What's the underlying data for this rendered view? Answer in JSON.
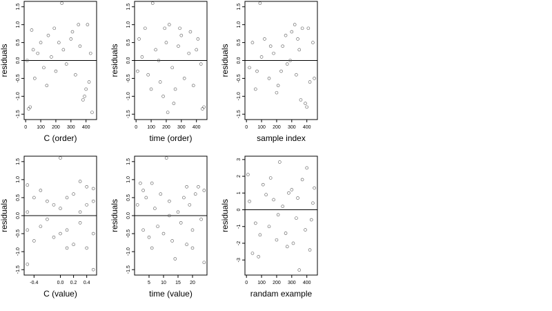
{
  "chart_data": [
    {
      "type": "scatter",
      "xlabel": "C (order)",
      "ylabel": "residuals",
      "xlim": [
        -10,
        470
      ],
      "ylim": [
        -1.65,
        1.65
      ],
      "xticks": [
        0,
        100,
        200,
        300,
        400
      ],
      "yticks": [
        1.5,
        1.0,
        0.5,
        0.0,
        -0.5,
        -1.0,
        -1.5
      ],
      "ytick_labels": [
        "1.5",
        "1.0",
        "0.5",
        "0.0",
        "-0.5",
        "-1.0",
        "-1.5"
      ],
      "hline": 0,
      "points": [
        [
          240,
          1.6
        ],
        [
          40,
          0.85
        ],
        [
          350,
          1.0
        ],
        [
          410,
          1.0
        ],
        [
          20,
          -1.35
        ],
        [
          30,
          -1.3
        ],
        [
          440,
          -1.45
        ],
        [
          380,
          -1.1
        ],
        [
          390,
          -1.0
        ],
        [
          100,
          0.5
        ],
        [
          150,
          0.7
        ],
        [
          300,
          0.6
        ],
        [
          80,
          0.2
        ],
        [
          120,
          -0.2
        ],
        [
          200,
          -0.3
        ],
        [
          250,
          0.3
        ],
        [
          330,
          -0.4
        ],
        [
          360,
          0.4
        ],
        [
          420,
          -0.6
        ],
        [
          60,
          -0.5
        ],
        [
          170,
          0.1
        ],
        [
          270,
          -0.1
        ],
        [
          430,
          0.2
        ],
        [
          10,
          0.0
        ],
        [
          220,
          0.5
        ],
        [
          310,
          0.8
        ],
        [
          140,
          -0.7
        ],
        [
          190,
          0.9
        ],
        [
          400,
          -0.8
        ],
        [
          50,
          0.3
        ]
      ]
    },
    {
      "type": "scatter",
      "xlabel": "time (order)",
      "ylabel": "residuals",
      "xlim": [
        -10,
        470
      ],
      "ylim": [
        -1.65,
        1.65
      ],
      "xticks": [
        0,
        100,
        200,
        300,
        400
      ],
      "yticks": [
        1.5,
        1.0,
        0.5,
        0.0,
        -0.5,
        -1.0,
        -1.5
      ],
      "ytick_labels": [
        "1.5",
        "1.0",
        "0.5",
        "0.0",
        "-0.5",
        "-1.0",
        "-1.5"
      ],
      "hline": 0,
      "points": [
        [
          110,
          1.6
        ],
        [
          60,
          0.9
        ],
        [
          220,
          1.0
        ],
        [
          290,
          0.9
        ],
        [
          450,
          -1.3
        ],
        [
          440,
          -1.35
        ],
        [
          210,
          -1.45
        ],
        [
          180,
          -1.0
        ],
        [
          250,
          -1.2
        ],
        [
          20,
          0.6
        ],
        [
          80,
          -0.4
        ],
        [
          130,
          0.3
        ],
        [
          160,
          -0.6
        ],
        [
          200,
          0.5
        ],
        [
          240,
          -0.2
        ],
        [
          280,
          0.4
        ],
        [
          320,
          -0.5
        ],
        [
          350,
          0.2
        ],
        [
          380,
          -0.7
        ],
        [
          410,
          0.6
        ],
        [
          430,
          -0.1
        ],
        [
          40,
          0.1
        ],
        [
          300,
          0.7
        ],
        [
          100,
          -0.8
        ],
        [
          360,
          0.8
        ],
        [
          150,
          0.0
        ],
        [
          260,
          -0.8
        ],
        [
          400,
          0.3
        ],
        [
          10,
          -0.3
        ],
        [
          190,
          0.9
        ]
      ]
    },
    {
      "type": "scatter",
      "xlabel": "sample index",
      "ylabel": "residuals",
      "xlim": [
        -10,
        470
      ],
      "ylim": [
        -1.65,
        1.65
      ],
      "xticks": [
        0,
        100,
        200,
        300,
        400
      ],
      "yticks": [
        1.5,
        1.0,
        0.5,
        0.0,
        -0.5,
        -1.0,
        -1.5
      ],
      "ytick_labels": [
        "1.5",
        "1.0",
        "0.5",
        "0.0",
        "-0.5",
        "-1.0",
        "-1.5"
      ],
      "hline": 0,
      "points": [
        [
          90,
          1.6
        ],
        [
          320,
          1.0
        ],
        [
          370,
          0.9
        ],
        [
          390,
          -1.2
        ],
        [
          400,
          -1.3
        ],
        [
          360,
          -1.1
        ],
        [
          40,
          0.5
        ],
        [
          70,
          -0.3
        ],
        [
          120,
          0.6
        ],
        [
          150,
          -0.5
        ],
        [
          180,
          0.2
        ],
        [
          210,
          -0.7
        ],
        [
          240,
          0.4
        ],
        [
          270,
          -0.1
        ],
        [
          300,
          0.8
        ],
        [
          330,
          -0.4
        ],
        [
          350,
          0.3
        ],
        [
          420,
          -0.6
        ],
        [
          440,
          0.5
        ],
        [
          20,
          -0.2
        ],
        [
          100,
          0.1
        ],
        [
          200,
          -0.9
        ],
        [
          260,
          0.7
        ],
        [
          410,
          0.9
        ],
        [
          60,
          -0.8
        ],
        [
          160,
          0.4
        ],
        [
          230,
          -0.3
        ],
        [
          290,
          0.0
        ],
        [
          340,
          0.6
        ],
        [
          450,
          -0.5
        ]
      ]
    },
    {
      "type": "scatter",
      "xlabel": "C (value)",
      "ylabel": "residuals",
      "xlim": [
        -0.55,
        0.55
      ],
      "ylim": [
        -1.65,
        1.65
      ],
      "xticks": [
        -0.4,
        0.0,
        0.2,
        0.4
      ],
      "xtick_labels": [
        "-0.4",
        "0.0",
        "0.2",
        "0.4"
      ],
      "yticks": [
        1.5,
        1.0,
        0.5,
        0.0,
        -0.5,
        -1.0,
        -1.5
      ],
      "ytick_labels": [
        "1.5",
        "1.0",
        "0.5",
        "0.0",
        "-0.5",
        "-1.0",
        "-1.5"
      ],
      "hline": 0,
      "points": [
        [
          0.0,
          1.6
        ],
        [
          -0.5,
          0.85
        ],
        [
          -0.5,
          -1.35
        ],
        [
          0.5,
          -1.5
        ],
        [
          0.5,
          0.75
        ],
        [
          0.3,
          0.95
        ],
        [
          -0.4,
          0.5
        ],
        [
          -0.3,
          -0.3
        ],
        [
          -0.2,
          0.4
        ],
        [
          -0.1,
          -0.6
        ],
        [
          0.0,
          0.2
        ],
        [
          0.1,
          -0.4
        ],
        [
          0.2,
          0.6
        ],
        [
          0.3,
          -0.2
        ],
        [
          0.4,
          0.3
        ],
        [
          0.5,
          -0.5
        ],
        [
          -0.5,
          0.1
        ],
        [
          -0.4,
          -0.7
        ],
        [
          0.1,
          0.5
        ],
        [
          0.2,
          -0.8
        ],
        [
          0.4,
          -0.9
        ],
        [
          0.5,
          0.4
        ],
        [
          -0.3,
          0.7
        ],
        [
          0.0,
          -0.5
        ],
        [
          -0.2,
          -0.1
        ],
        [
          0.3,
          0.1
        ],
        [
          0.4,
          0.8
        ],
        [
          -0.1,
          0.3
        ],
        [
          0.1,
          -0.9
        ],
        [
          -0.5,
          -0.4
        ]
      ]
    },
    {
      "type": "scatter",
      "xlabel": "time (value)",
      "ylabel": "residuals",
      "xlim": [
        0,
        25
      ],
      "ylim": [
        -1.65,
        1.65
      ],
      "xticks": [
        5,
        10,
        15,
        20
      ],
      "yticks": [
        1.5,
        1.0,
        0.5,
        0.0,
        -0.5,
        -1.0,
        -1.5
      ],
      "ytick_labels": [
        "1.5",
        "1.0",
        "0.5",
        "0.0",
        "-0.5",
        "-1.0",
        "-1.5"
      ],
      "hline": 0,
      "points": [
        [
          11,
          1.6
        ],
        [
          2,
          0.9
        ],
        [
          6,
          0.9
        ],
        [
          22,
          0.8
        ],
        [
          24,
          -1.3
        ],
        [
          14,
          -1.2
        ],
        [
          1,
          0.3
        ],
        [
          3,
          -0.4
        ],
        [
          4,
          0.5
        ],
        [
          5,
          -0.6
        ],
        [
          7,
          0.2
        ],
        [
          8,
          -0.3
        ],
        [
          9,
          0.6
        ],
        [
          10,
          -0.5
        ],
        [
          12,
          0.4
        ],
        [
          13,
          -0.7
        ],
        [
          15,
          0.1
        ],
        [
          16,
          -0.2
        ],
        [
          17,
          0.5
        ],
        [
          18,
          -0.8
        ],
        [
          19,
          0.3
        ],
        [
          20,
          -0.4
        ],
        [
          21,
          0.6
        ],
        [
          23,
          -0.1
        ],
        [
          24,
          0.7
        ],
        [
          12,
          0.0
        ],
        [
          6,
          -0.9
        ],
        [
          18,
          0.8
        ],
        [
          3,
          0.7
        ],
        [
          20,
          -0.9
        ]
      ]
    },
    {
      "type": "scatter",
      "xlabel": "randam example",
      "ylabel": "residuals",
      "xlim": [
        -10,
        470
      ],
      "ylim": [
        -3.9,
        3.2
      ],
      "xticks": [
        0,
        100,
        200,
        300,
        400
      ],
      "yticks": [
        3,
        2,
        1,
        0,
        -1,
        -2,
        -3
      ],
      "ytick_labels": [
        "3",
        "2",
        "1",
        "0",
        "-1",
        "-2",
        "-3"
      ],
      "hline": 0,
      "points": [
        [
          220,
          2.85
        ],
        [
          10,
          2.1
        ],
        [
          400,
          2.5
        ],
        [
          350,
          -3.6
        ],
        [
          40,
          -2.6
        ],
        [
          80,
          -2.8
        ],
        [
          420,
          -2.4
        ],
        [
          110,
          1.5
        ],
        [
          150,
          -1.0
        ],
        [
          180,
          0.6
        ],
        [
          260,
          -1.4
        ],
        [
          300,
          1.2
        ],
        [
          330,
          -0.5
        ],
        [
          370,
          1.8
        ],
        [
          440,
          0.4
        ],
        [
          60,
          -0.8
        ],
        [
          130,
          0.9
        ],
        [
          200,
          -1.8
        ],
        [
          240,
          0.2
        ],
        [
          280,
          1.0
        ],
        [
          310,
          -2.0
        ],
        [
          390,
          -1.2
        ],
        [
          20,
          0.5
        ],
        [
          90,
          -1.5
        ],
        [
          160,
          1.9
        ],
        [
          210,
          -0.3
        ],
        [
          270,
          -2.2
        ],
        [
          340,
          0.7
        ],
        [
          430,
          -0.6
        ],
        [
          450,
          1.3
        ]
      ]
    }
  ]
}
